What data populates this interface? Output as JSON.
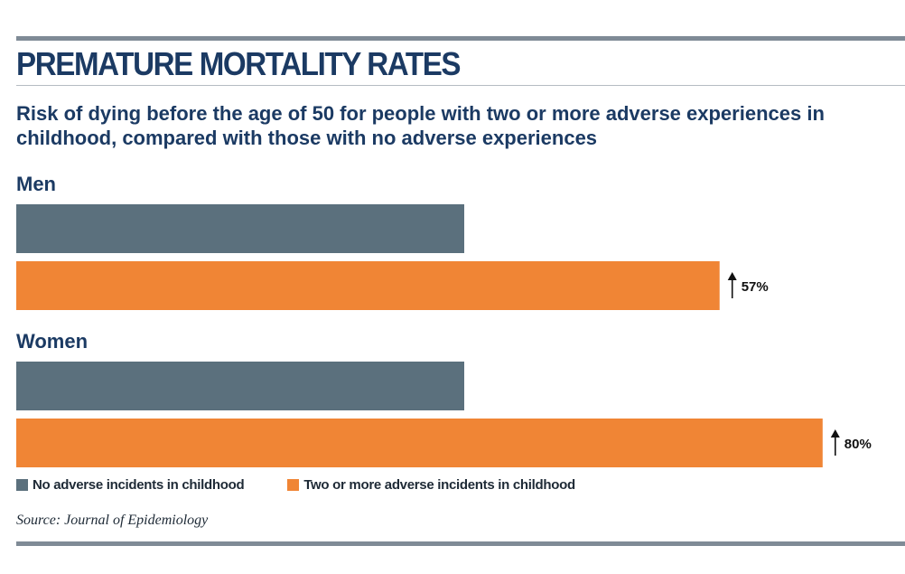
{
  "title": "PREMATURE MORTALITY RATES",
  "subtitle": "Risk of dying before the age of 50 for people with two or more adverse experiences in childhood, compared with those with no adverse experiences",
  "source": "Source: Journal of Epidemiology",
  "colors": {
    "no_adverse": "#5b707d",
    "two_or_more": "#f08535",
    "heading": "#1b3a63",
    "rule": "#7f8b96"
  },
  "chart_data": {
    "type": "bar",
    "orientation": "horizontal",
    "categories": [
      "Men",
      "Women"
    ],
    "series": [
      {
        "name": "No adverse incidents in childhood",
        "values": [
          1.0,
          1.0
        ]
      },
      {
        "name": "Two or more adverse incidents in childhood",
        "values": [
          1.57,
          1.8
        ]
      }
    ],
    "annotations": [
      "57%",
      "80%"
    ],
    "annotation_icon": "up-arrow-icon",
    "title": "PREMATURE MORTALITY RATES",
    "legend_position": "bottom-left",
    "grid": false
  }
}
